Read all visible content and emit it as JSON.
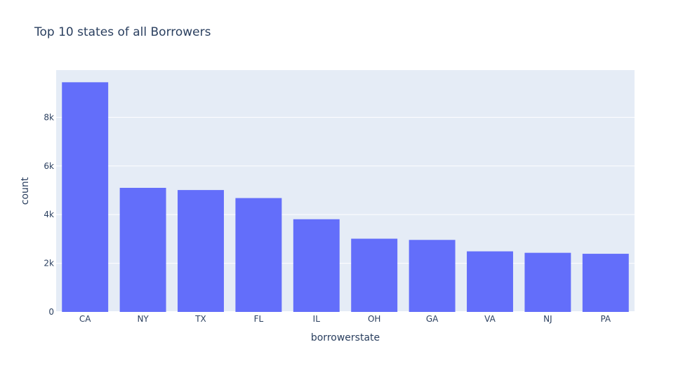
{
  "chart_data": {
    "type": "bar",
    "title": "Top 10 states of all Borrowers",
    "xlabel": "borrowerstate",
    "ylabel": "count",
    "categories": [
      "CA",
      "NY",
      "TX",
      "FL",
      "IL",
      "OH",
      "GA",
      "VA",
      "NJ",
      "PA"
    ],
    "values": [
      9440,
      5100,
      5010,
      4680,
      3810,
      3010,
      2960,
      2490,
      2430,
      2390
    ],
    "ylim": [
      0,
      9940
    ],
    "yticks": [
      0,
      2000,
      4000,
      6000,
      8000
    ],
    "ytick_labels": [
      "0",
      "2k",
      "4k",
      "6k",
      "8k"
    ],
    "grid": true,
    "colors": {
      "bar": "#636efa",
      "plot_bg": "#e5ecf6",
      "text": "#2a3f5f"
    }
  }
}
